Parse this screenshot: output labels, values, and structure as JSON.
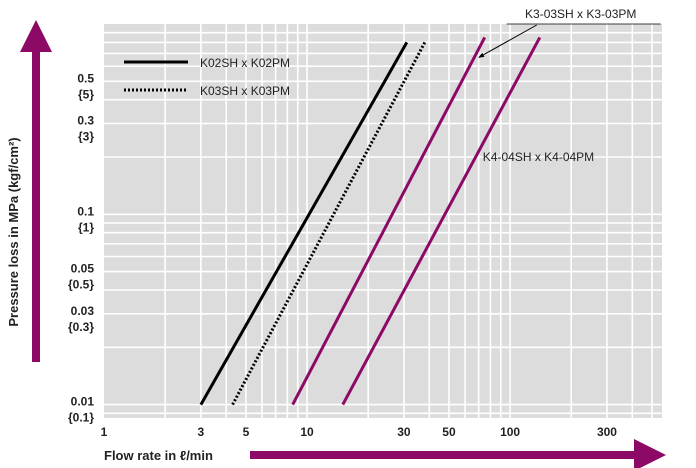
{
  "chart_data": {
    "type": "line",
    "xscale": "log",
    "yscale": "log",
    "xlim": [
      1,
      560
    ],
    "ylim": [
      0.0085,
      1.0
    ],
    "grid": true,
    "legend_position": "top-left",
    "xlabel": "Flow rate in ℓ/min",
    "ylabel": "Pressure loss in MPa (kgf/cm²)",
    "x_ticks": [
      {
        "value": 1,
        "label": "1"
      },
      {
        "value": 3,
        "label": "3"
      },
      {
        "value": 5,
        "label": "5"
      },
      {
        "value": 10,
        "label": "10"
      },
      {
        "value": 30,
        "label": "30"
      },
      {
        "value": 50,
        "label": "50"
      },
      {
        "value": 100,
        "label": "100"
      },
      {
        "value": 300,
        "label": "300"
      }
    ],
    "y_ticks": [
      {
        "value": 0.5,
        "label": "0.5",
        "alt": "{5}"
      },
      {
        "value": 0.3,
        "label": "0.3",
        "alt": "{3}"
      },
      {
        "value": 0.1,
        "label": "0.1",
        "alt": "{1}"
      },
      {
        "value": 0.05,
        "label": "0.05",
        "alt": "{0.5}"
      },
      {
        "value": 0.03,
        "label": "0.03",
        "alt": "{0.3}"
      },
      {
        "value": 0.01,
        "label": "0.01",
        "alt": "{0.1}"
      }
    ],
    "series": [
      {
        "name": "K02SH x K02PM",
        "color": "#000000",
        "style": "solid",
        "x": [
          3,
          31
        ],
        "y": [
          0.01,
          0.8
        ]
      },
      {
        "name": "K03SH x K03PM",
        "color": "#000000",
        "style": "dotted",
        "x": [
          4.3,
          38
        ],
        "y": [
          0.01,
          0.8
        ]
      },
      {
        "name": "K3-03SH x K3-03PM",
        "color": "#8c0a66",
        "style": "solid",
        "x": [
          8.5,
          75
        ],
        "y": [
          0.01,
          0.85
        ]
      },
      {
        "name": "K4-04SH x K4-04PM",
        "color": "#8c0a66",
        "style": "solid",
        "x": [
          15,
          140
        ],
        "y": [
          0.01,
          0.85
        ]
      }
    ],
    "legend": [
      {
        "label": "K02SH x K02PM",
        "series": 0
      },
      {
        "label": "K03SH x K03PM",
        "series": 1
      }
    ],
    "annotations": [
      {
        "text": "K3-03SH x K3-03PM",
        "series": 2,
        "callout": true
      },
      {
        "text": "K4-04SH x K4-04PM",
        "series": 3,
        "callout": false
      }
    ],
    "colors": {
      "grid_bg": "#dcdcdc",
      "grid_line": "#ffffff",
      "accent": "#8c0a66"
    }
  }
}
